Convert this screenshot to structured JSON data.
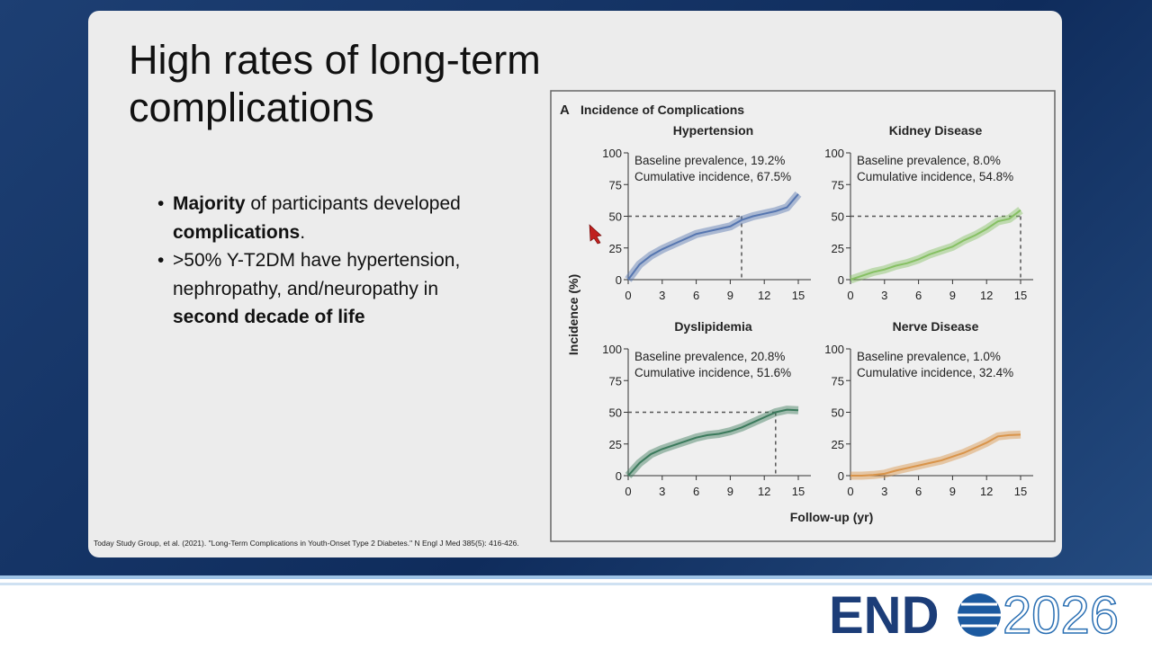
{
  "slide": {
    "title": "High rates of long-term complications",
    "bullets": [
      [
        {
          "text": "Majority",
          "bold": true
        },
        {
          "text": " of participants developed "
        },
        {
          "text": "complications",
          "bold": true
        },
        {
          "text": "."
        }
      ],
      [
        {
          "text": ">50% Y-T2DM have hypertension, nephropathy, and/neuropathy in "
        },
        {
          "text": "second decade of life",
          "bold": true
        }
      ]
    ],
    "citation": "Today Study Group, et al. (2021). \"Long-Term Complications in Youth-Onset Type 2 Diabetes.\" N Engl J Med 385(5): 416-426."
  },
  "figure": {
    "panel_letter": "A",
    "title": "Incidence of Complications",
    "y_label": "Incidence (%)",
    "x_label": "Follow-up (yr)"
  },
  "logo": {
    "left": "END",
    "right": "2026"
  },
  "chart_data": [
    {
      "type": "line",
      "title": "Hypertension",
      "annotations": [
        "Baseline prevalence, 19.2%",
        "Cumulative incidence, 67.5%"
      ],
      "color": "#5676b0",
      "x": [
        0,
        1,
        2,
        3,
        4,
        5,
        6,
        7,
        8,
        9,
        10,
        11,
        12,
        13,
        14,
        15
      ],
      "values": [
        0,
        12,
        19,
        24,
        28,
        32,
        36,
        38,
        40,
        42,
        47,
        50,
        52,
        54,
        57,
        67.5
      ],
      "xlim": [
        0,
        15
      ],
      "ylim": [
        0,
        100
      ],
      "xticks": [
        0,
        3,
        6,
        9,
        12,
        15
      ],
      "yticks": [
        0,
        25,
        50,
        75,
        100
      ],
      "reference_y": 50,
      "reference_x": 10
    },
    {
      "type": "line",
      "title": "Kidney Disease",
      "annotations": [
        "Baseline prevalence, 8.0%",
        "Cumulative incidence, 54.8%"
      ],
      "color": "#86c063",
      "x": [
        0,
        1,
        2,
        3,
        4,
        5,
        6,
        7,
        8,
        9,
        10,
        11,
        12,
        13,
        14,
        15
      ],
      "values": [
        0,
        3,
        6,
        8,
        11,
        13,
        16,
        20,
        23,
        26,
        31,
        35,
        40,
        46,
        48,
        54.8
      ],
      "xlim": [
        0,
        15
      ],
      "ylim": [
        0,
        100
      ],
      "xticks": [
        0,
        3,
        6,
        9,
        12,
        15
      ],
      "yticks": [
        0,
        25,
        50,
        75,
        100
      ],
      "reference_y": 50,
      "reference_x": 15
    },
    {
      "type": "line",
      "title": "Dyslipidemia",
      "annotations": [
        "Baseline prevalence, 20.8%",
        "Cumulative incidence, 51.6%"
      ],
      "color": "#3b7a5c",
      "x": [
        0,
        1,
        2,
        3,
        4,
        5,
        6,
        7,
        8,
        9,
        10,
        11,
        12,
        13,
        14,
        15
      ],
      "values": [
        0,
        10,
        17,
        21,
        24,
        27,
        30,
        32,
        33,
        35,
        38,
        42,
        46,
        50,
        52,
        51.6
      ],
      "xlim": [
        0,
        15
      ],
      "ylim": [
        0,
        100
      ],
      "xticks": [
        0,
        3,
        6,
        9,
        12,
        15
      ],
      "yticks": [
        0,
        25,
        50,
        75,
        100
      ],
      "reference_y": 50,
      "reference_x": 13
    },
    {
      "type": "line",
      "title": "Nerve Disease",
      "annotations": [
        "Baseline prevalence, 1.0%",
        "Cumulative incidence, 32.4%"
      ],
      "color": "#d9944a",
      "x": [
        0,
        1,
        2,
        3,
        4,
        5,
        6,
        7,
        8,
        9,
        10,
        11,
        12,
        13,
        14,
        15
      ],
      "values": [
        0,
        0,
        0.5,
        1.5,
        4,
        6,
        8,
        10,
        12,
        15,
        18,
        22,
        26,
        31,
        32,
        32.4
      ],
      "xlim": [
        0,
        15
      ],
      "ylim": [
        0,
        100
      ],
      "xticks": [
        0,
        3,
        6,
        9,
        12,
        15
      ],
      "yticks": [
        0,
        25,
        50,
        75,
        100
      ]
    }
  ]
}
